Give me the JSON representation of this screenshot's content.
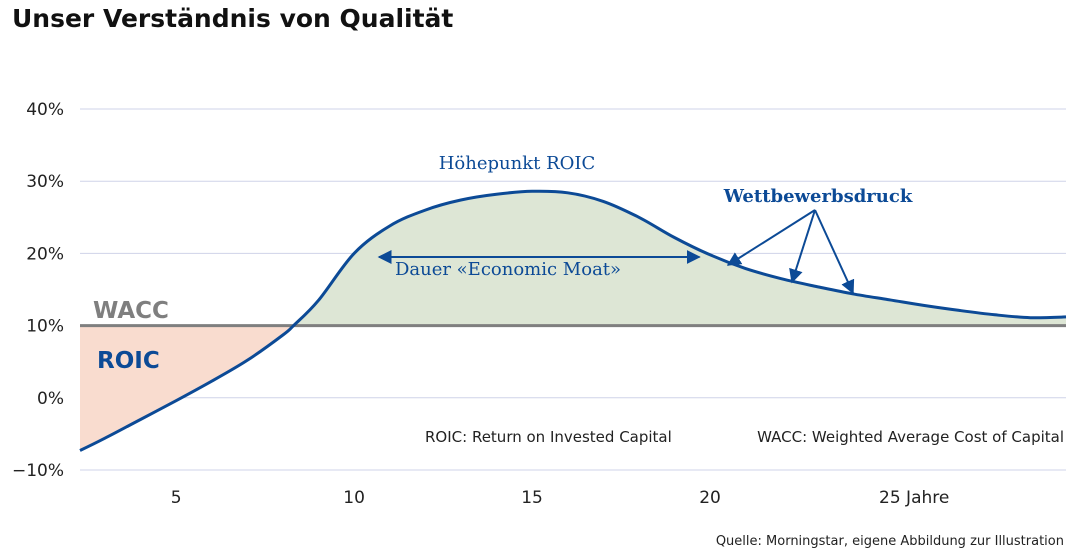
{
  "title": "Unser Verständnis von Qualität",
  "source": "Quelle: Morningstar, eigene Abbildung zur Illustration",
  "chart_data": {
    "type": "line",
    "x_ticks": [
      "5",
      "10",
      "15",
      "20",
      "25 Jahre"
    ],
    "x_tick_values": [
      5,
      10,
      15,
      20,
      25
    ],
    "y_ticks": [
      "40%",
      "30%",
      "20%",
      "10%",
      "0%",
      "−10%"
    ],
    "y_tick_values": [
      40,
      30,
      20,
      10,
      0,
      -10
    ],
    "xlim": [
      2.3,
      30
    ],
    "ylim": [
      -10,
      40
    ],
    "grid": true,
    "series": [
      {
        "name": "ROIC",
        "x": [
          2.3,
          3,
          4,
          5,
          6,
          7,
          8,
          8.3,
          9,
          10,
          11,
          12,
          13,
          14,
          15,
          16,
          17,
          18,
          19,
          20,
          21,
          22,
          23,
          24,
          25,
          26,
          27,
          28,
          29,
          30
        ],
        "y": [
          -7.3,
          -5.6,
          -3.0,
          -0.4,
          2.3,
          5.2,
          8.7,
          10.0,
          13.5,
          20.0,
          23.8,
          26.0,
          27.4,
          28.2,
          28.6,
          28.4,
          27.2,
          25.0,
          22.2,
          19.8,
          17.9,
          16.5,
          15.4,
          14.4,
          13.6,
          12.8,
          12.1,
          11.5,
          11.1,
          11.2
        ]
      },
      {
        "name": "WACC",
        "x": [
          2.3,
          30
        ],
        "y": [
          10,
          10
        ]
      }
    ],
    "labels": {
      "wacc": "WACC",
      "roic": "ROIC",
      "peak": "Höhepunkt ROIC",
      "moat": "Dauer «Economic Moat»",
      "competition": "Wettbewerbsdruck",
      "roic_def": "ROIC: Return on Invested Capital",
      "wacc_def": "WACC: Weighted Average Cost of Capital"
    },
    "moat_range": [
      10.7,
      19.7
    ],
    "colors": {
      "roic_line": "#0c4a96",
      "wacc_line": "#7f7f7f",
      "wacc_label": "#7f7f7f",
      "roic_label": "#0c4a96",
      "annotation": "#0c4a96",
      "above_fill": "#dde6d5",
      "below_fill": "#f9dccf",
      "grid": "#cfd3e8"
    }
  }
}
